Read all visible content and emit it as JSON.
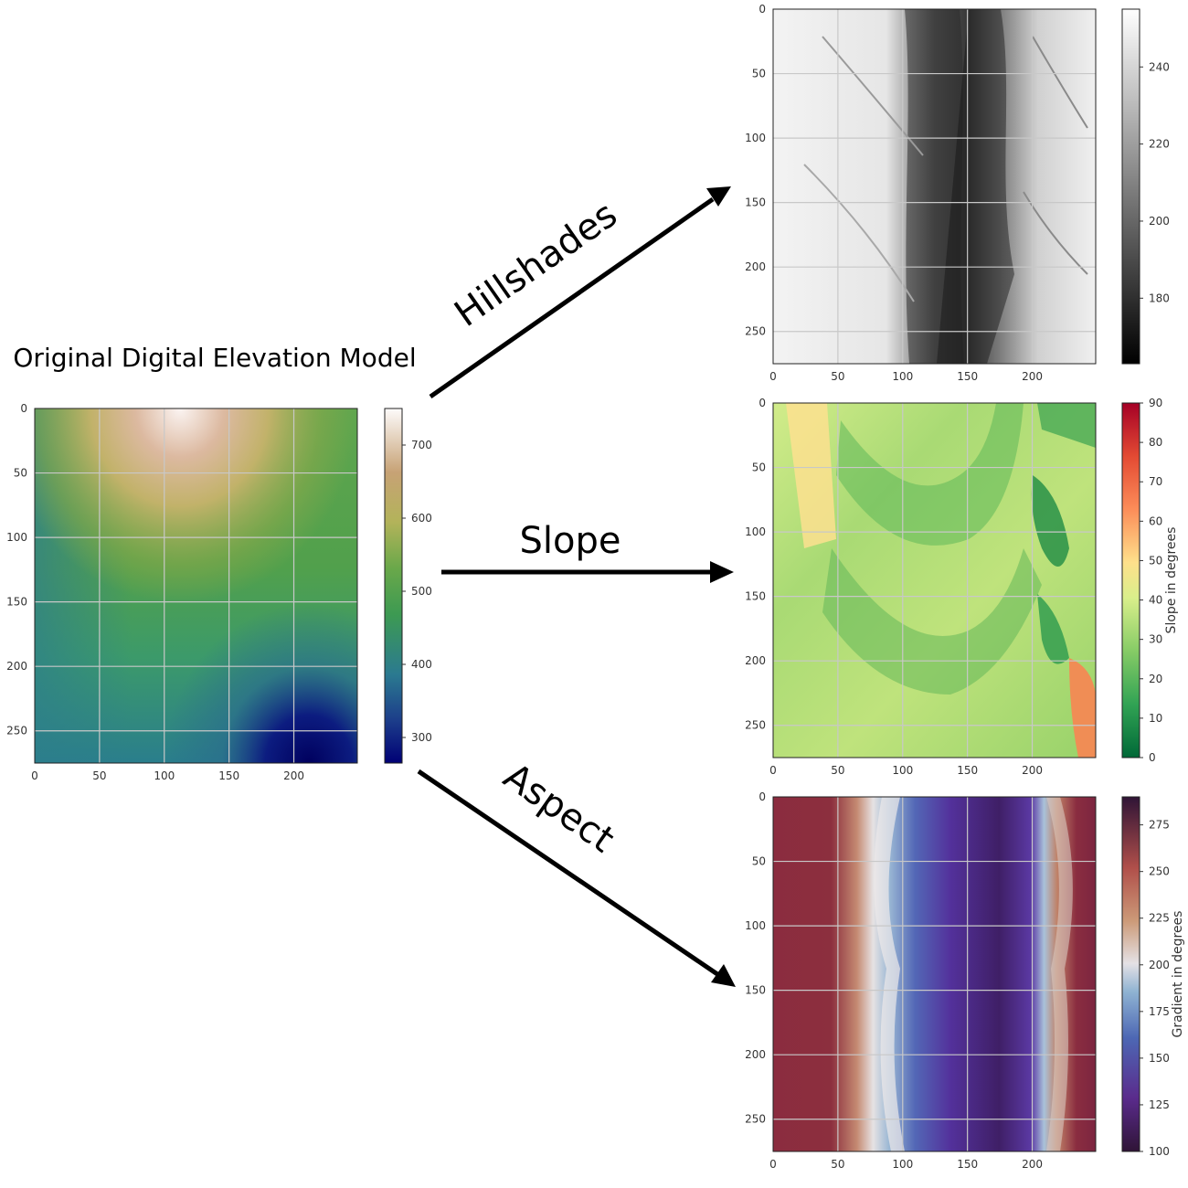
{
  "dem": {
    "title": "Original Digital Elevation Model",
    "x_ticks": [
      "0",
      "50",
      "100",
      "150",
      "200"
    ],
    "y_ticks": [
      "0",
      "50",
      "100",
      "150",
      "200",
      "250"
    ],
    "colorbar_ticks": [
      "300",
      "400",
      "500",
      "600",
      "700"
    ],
    "colorbar_range": [
      265,
      750
    ],
    "colormap": "gist_earth"
  },
  "arrows": {
    "hillshades_label": "Hillshades",
    "slope_label": "Slope",
    "aspect_label": "Aspect"
  },
  "hillshade": {
    "x_ticks": [
      "0",
      "50",
      "100",
      "150",
      "200"
    ],
    "y_ticks": [
      "0",
      "50",
      "100",
      "150",
      "200",
      "250"
    ],
    "colorbar_ticks": [
      "180",
      "200",
      "220",
      "240"
    ],
    "colorbar_range": [
      163,
      255
    ],
    "colormap": "Greys_r"
  },
  "slope": {
    "x_ticks": [
      "0",
      "50",
      "100",
      "150",
      "200"
    ],
    "y_ticks": [
      "0",
      "50",
      "100",
      "150",
      "200",
      "250"
    ],
    "colorbar_ticks": [
      "0",
      "10",
      "20",
      "30",
      "40",
      "50",
      "60",
      "70",
      "80",
      "90"
    ],
    "colorbar_range": [
      0,
      90
    ],
    "colorbar_label": "Slope in degrees",
    "colormap": "RdYlGn_r"
  },
  "aspect": {
    "x_ticks": [
      "0",
      "50",
      "100",
      "150",
      "200"
    ],
    "y_ticks": [
      "0",
      "50",
      "100",
      "150",
      "200",
      "250"
    ],
    "colorbar_ticks": [
      "100",
      "125",
      "150",
      "175",
      "200",
      "225",
      "250",
      "275"
    ],
    "colorbar_range": [
      100,
      290
    ],
    "colorbar_label": "Gradient in degrees",
    "colormap": "twilight_shifted"
  }
}
